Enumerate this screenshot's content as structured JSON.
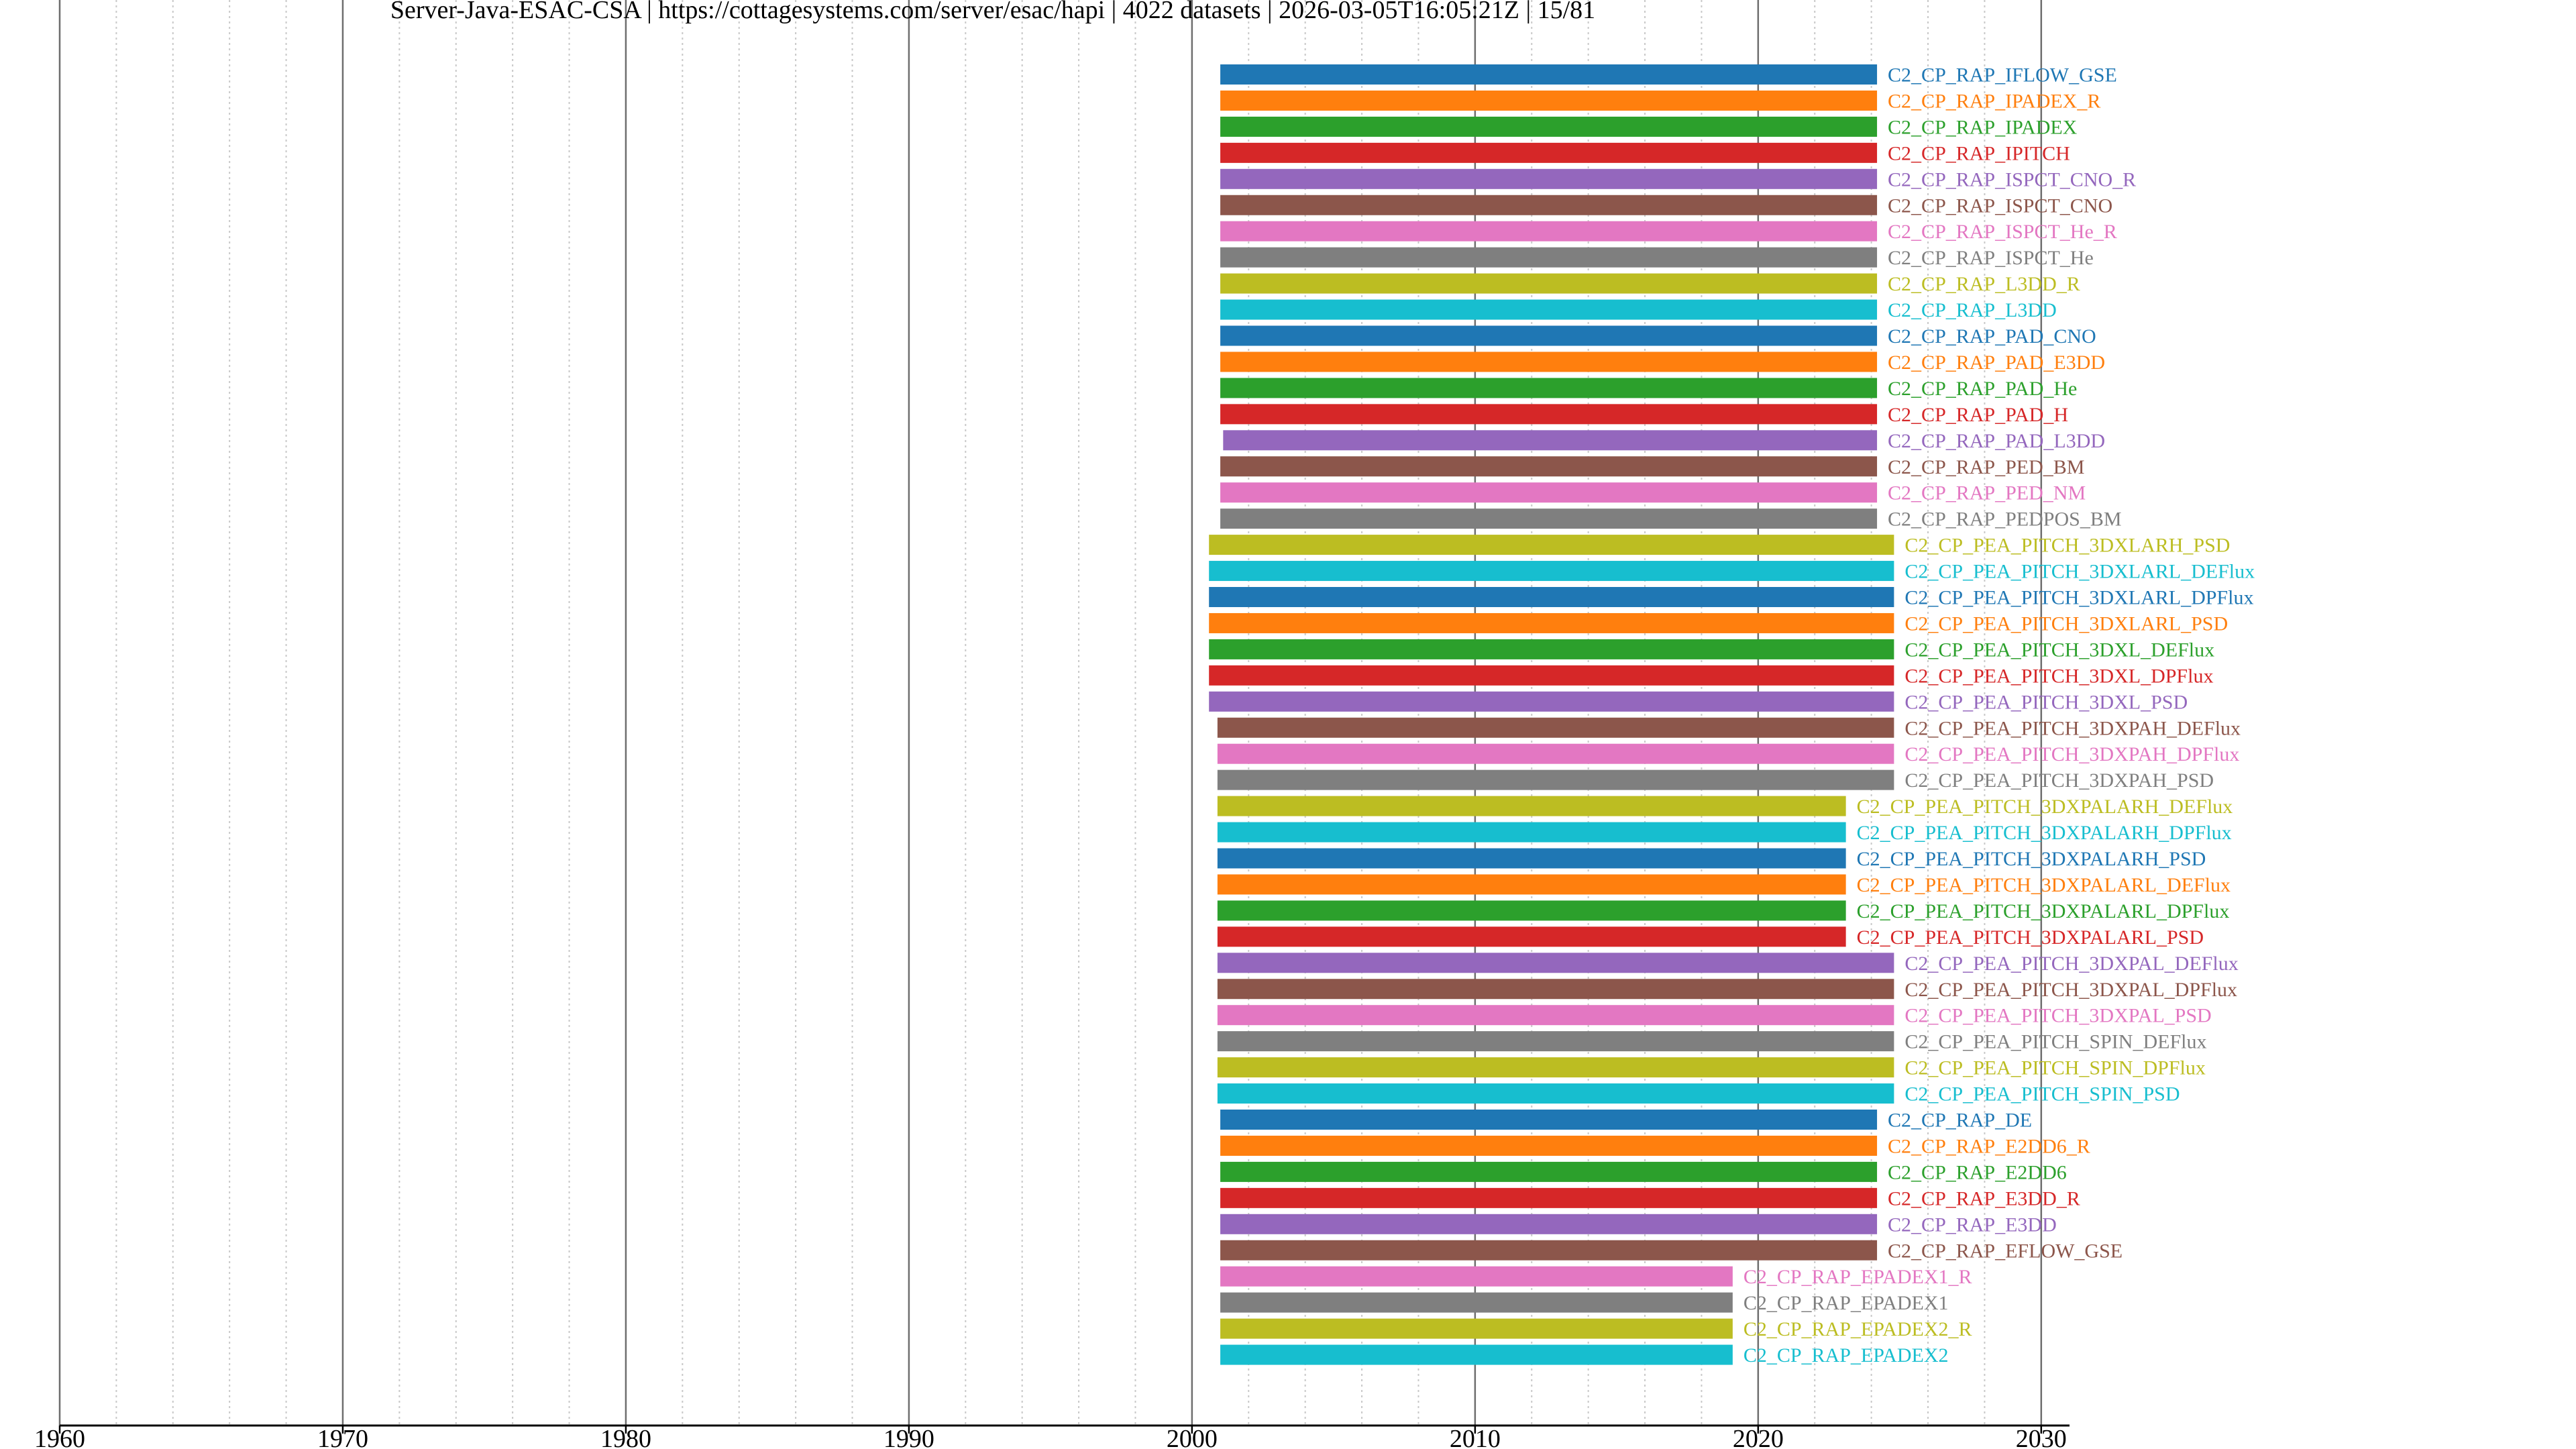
{
  "chart_data": {
    "type": "timeline",
    "title": "Server-Java-ESAC-CSA | https://cottagesystems.com/server/esac/hapi | 4022 datasets | 2026-03-05T16:05:21Z | 15/81",
    "xlabel": "",
    "ylabel": "",
    "xlim": [
      1960,
      2031
    ],
    "x_ticks": [
      "1960",
      "1970",
      "1980",
      "1990",
      "2000",
      "2010",
      "2020",
      "2030"
    ],
    "grid": true,
    "minor_grid_step_years": 2,
    "series": [
      {
        "name": "C2_CP_RAP_IFLOW_GSE",
        "start": 2001.0,
        "end": 2024.2,
        "color": "#1f77b4"
      },
      {
        "name": "C2_CP_RAP_IPADEX_R",
        "start": 2001.0,
        "end": 2024.2,
        "color": "#ff7f0e"
      },
      {
        "name": "C2_CP_RAP_IPADEX",
        "start": 2001.0,
        "end": 2024.2,
        "color": "#2ca02c"
      },
      {
        "name": "C2_CP_RAP_IPITCH",
        "start": 2001.0,
        "end": 2024.2,
        "color": "#d62728"
      },
      {
        "name": "C2_CP_RAP_ISPCT_CNO_R",
        "start": 2001.0,
        "end": 2024.2,
        "color": "#9467bd"
      },
      {
        "name": "C2_CP_RAP_ISPCT_CNO",
        "start": 2001.0,
        "end": 2024.2,
        "color": "#8c564b"
      },
      {
        "name": "C2_CP_RAP_ISPCT_He_R",
        "start": 2001.0,
        "end": 2024.2,
        "color": "#e377c2"
      },
      {
        "name": "C2_CP_RAP_ISPCT_He",
        "start": 2001.0,
        "end": 2024.2,
        "color": "#7f7f7f"
      },
      {
        "name": "C2_CP_RAP_L3DD_R",
        "start": 2001.0,
        "end": 2024.2,
        "color": "#bcbd22"
      },
      {
        "name": "C2_CP_RAP_L3DD",
        "start": 2001.0,
        "end": 2024.2,
        "color": "#17becf"
      },
      {
        "name": "C2_CP_RAP_PAD_CNO",
        "start": 2001.0,
        "end": 2024.2,
        "color": "#1f77b4"
      },
      {
        "name": "C2_CP_RAP_PAD_E3DD",
        "start": 2001.0,
        "end": 2024.2,
        "color": "#ff7f0e"
      },
      {
        "name": "C2_CP_RAP_PAD_He",
        "start": 2001.0,
        "end": 2024.2,
        "color": "#2ca02c"
      },
      {
        "name": "C2_CP_RAP_PAD_H",
        "start": 2001.0,
        "end": 2024.2,
        "color": "#d62728"
      },
      {
        "name": "C2_CP_RAP_PAD_L3DD",
        "start": 2001.1,
        "end": 2024.2,
        "color": "#9467bd"
      },
      {
        "name": "C2_CP_RAP_PED_BM",
        "start": 2001.0,
        "end": 2024.2,
        "color": "#8c564b"
      },
      {
        "name": "C2_CP_RAP_PED_NM",
        "start": 2001.0,
        "end": 2024.2,
        "color": "#e377c2"
      },
      {
        "name": "C2_CP_RAP_PEDPOS_BM",
        "start": 2001.0,
        "end": 2024.2,
        "color": "#7f7f7f"
      },
      {
        "name": "C2_CP_PEA_PITCH_3DXLARH_PSD",
        "start": 2000.6,
        "end": 2024.8,
        "color": "#bcbd22"
      },
      {
        "name": "C2_CP_PEA_PITCH_3DXLARL_DEFlux",
        "start": 2000.6,
        "end": 2024.8,
        "color": "#17becf"
      },
      {
        "name": "C2_CP_PEA_PITCH_3DXLARL_DPFlux",
        "start": 2000.6,
        "end": 2024.8,
        "color": "#1f77b4"
      },
      {
        "name": "C2_CP_PEA_PITCH_3DXLARL_PSD",
        "start": 2000.6,
        "end": 2024.8,
        "color": "#ff7f0e"
      },
      {
        "name": "C2_CP_PEA_PITCH_3DXL_DEFlux",
        "start": 2000.6,
        "end": 2024.8,
        "color": "#2ca02c"
      },
      {
        "name": "C2_CP_PEA_PITCH_3DXL_DPFlux",
        "start": 2000.6,
        "end": 2024.8,
        "color": "#d62728"
      },
      {
        "name": "C2_CP_PEA_PITCH_3DXL_PSD",
        "start": 2000.6,
        "end": 2024.8,
        "color": "#9467bd"
      },
      {
        "name": "C2_CP_PEA_PITCH_3DXPAH_DEFlux",
        "start": 2000.9,
        "end": 2024.8,
        "color": "#8c564b"
      },
      {
        "name": "C2_CP_PEA_PITCH_3DXPAH_DPFlux",
        "start": 2000.9,
        "end": 2024.8,
        "color": "#e377c2"
      },
      {
        "name": "C2_CP_PEA_PITCH_3DXPAH_PSD",
        "start": 2000.9,
        "end": 2024.8,
        "color": "#7f7f7f"
      },
      {
        "name": "C2_CP_PEA_PITCH_3DXPALARH_DEFlux",
        "start": 2000.9,
        "end": 2023.1,
        "color": "#bcbd22"
      },
      {
        "name": "C2_CP_PEA_PITCH_3DXPALARH_DPFlux",
        "start": 2000.9,
        "end": 2023.1,
        "color": "#17becf"
      },
      {
        "name": "C2_CP_PEA_PITCH_3DXPALARH_PSD",
        "start": 2000.9,
        "end": 2023.1,
        "color": "#1f77b4"
      },
      {
        "name": "C2_CP_PEA_PITCH_3DXPALARL_DEFlux",
        "start": 2000.9,
        "end": 2023.1,
        "color": "#ff7f0e"
      },
      {
        "name": "C2_CP_PEA_PITCH_3DXPALARL_DPFlux",
        "start": 2000.9,
        "end": 2023.1,
        "color": "#2ca02c"
      },
      {
        "name": "C2_CP_PEA_PITCH_3DXPALARL_PSD",
        "start": 2000.9,
        "end": 2023.1,
        "color": "#d62728"
      },
      {
        "name": "C2_CP_PEA_PITCH_3DXPAL_DEFlux",
        "start": 2000.9,
        "end": 2024.8,
        "color": "#9467bd"
      },
      {
        "name": "C2_CP_PEA_PITCH_3DXPAL_DPFlux",
        "start": 2000.9,
        "end": 2024.8,
        "color": "#8c564b"
      },
      {
        "name": "C2_CP_PEA_PITCH_3DXPAL_PSD",
        "start": 2000.9,
        "end": 2024.8,
        "color": "#e377c2"
      },
      {
        "name": "C2_CP_PEA_PITCH_SPIN_DEFlux",
        "start": 2000.9,
        "end": 2024.8,
        "color": "#7f7f7f"
      },
      {
        "name": "C2_CP_PEA_PITCH_SPIN_DPFlux",
        "start": 2000.9,
        "end": 2024.8,
        "color": "#bcbd22"
      },
      {
        "name": "C2_CP_PEA_PITCH_SPIN_PSD",
        "start": 2000.9,
        "end": 2024.8,
        "color": "#17becf"
      },
      {
        "name": "C2_CP_RAP_DE",
        "start": 2001.0,
        "end": 2024.2,
        "color": "#1f77b4"
      },
      {
        "name": "C2_CP_RAP_E2DD6_R",
        "start": 2001.0,
        "end": 2024.2,
        "color": "#ff7f0e"
      },
      {
        "name": "C2_CP_RAP_E2DD6",
        "start": 2001.0,
        "end": 2024.2,
        "color": "#2ca02c"
      },
      {
        "name": "C2_CP_RAP_E3DD_R",
        "start": 2001.0,
        "end": 2024.2,
        "color": "#d62728"
      },
      {
        "name": "C2_CP_RAP_E3DD",
        "start": 2001.0,
        "end": 2024.2,
        "color": "#9467bd"
      },
      {
        "name": "C2_CP_RAP_EFLOW_GSE",
        "start": 2001.0,
        "end": 2024.2,
        "color": "#8c564b"
      },
      {
        "name": "C2_CP_RAP_EPADEX1_R",
        "start": 2001.0,
        "end": 2019.1,
        "color": "#e377c2"
      },
      {
        "name": "C2_CP_RAP_EPADEX1",
        "start": 2001.0,
        "end": 2019.1,
        "color": "#7f7f7f"
      },
      {
        "name": "C2_CP_RAP_EPADEX2_R",
        "start": 2001.0,
        "end": 2019.1,
        "color": "#bcbd22"
      },
      {
        "name": "C2_CP_RAP_EPADEX2",
        "start": 2001.0,
        "end": 2019.1,
        "color": "#17becf"
      }
    ]
  }
}
